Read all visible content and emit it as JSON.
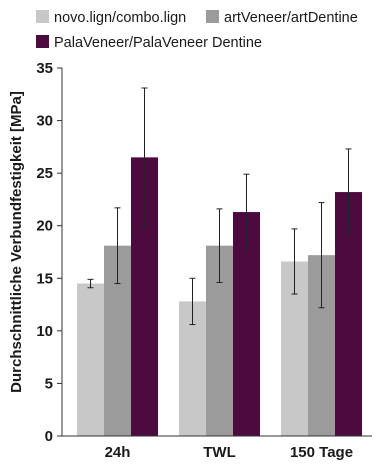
{
  "chart_data": {
    "type": "bar",
    "title": "",
    "xlabel": "",
    "ylabel": "Durchschnittliche Verbundfestigkeit [MPa]",
    "ylim": [
      0,
      35
    ],
    "yticks": [
      0,
      5,
      10,
      15,
      20,
      25,
      30,
      35
    ],
    "grid": false,
    "legend_position": "top",
    "error_bars": true,
    "categories": [
      "24h",
      "TWL",
      "150 Tage"
    ],
    "series": [
      {
        "name": "novo.lign/combo.lign",
        "color": "#c8c8c8",
        "values": [
          14.5,
          12.8,
          16.6
        ],
        "error": [
          0.4,
          2.2,
          3.1
        ]
      },
      {
        "name": "artVeneer/artDentine",
        "color": "#9b9b9b",
        "values": [
          18.1,
          18.1,
          17.2
        ],
        "error": [
          3.6,
          3.5,
          5.0
        ]
      },
      {
        "name": "PalaVeneer/PalaVeneer Dentine",
        "color": "#4d0a3e",
        "values": [
          26.5,
          21.3,
          23.2
        ],
        "error": [
          6.6,
          3.6,
          4.1
        ]
      }
    ]
  }
}
